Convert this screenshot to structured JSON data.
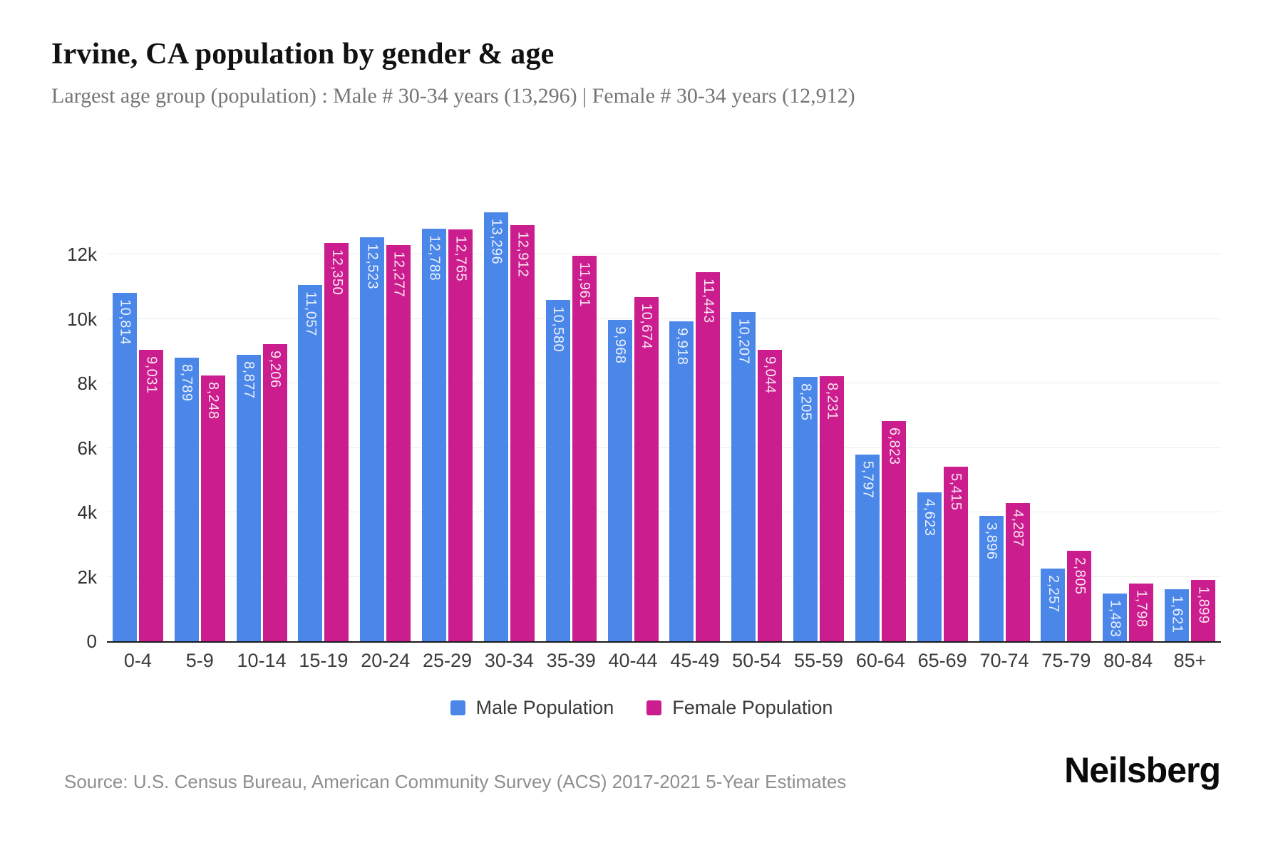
{
  "header": {
    "title": "Irvine, CA population by gender & age",
    "subtitle": "Largest age group (population) : Male # 30-34 years (13,296) | Female # 30-34 years (12,912)"
  },
  "footer": {
    "source": "Source: U.S. Census Bureau, American Community Survey (ACS) 2017-2021 5-Year Estimates",
    "brand": "Neilsberg"
  },
  "colors": {
    "male": "#4a87e8",
    "female": "#cb1d8d",
    "gridline": "#ececec",
    "axis_line": "#1a1a1a"
  },
  "chart_data": {
    "type": "bar",
    "title": "Irvine, CA population by gender & age",
    "categories": [
      "0-4",
      "5-9",
      "10-14",
      "15-19",
      "20-24",
      "25-29",
      "30-34",
      "35-39",
      "40-44",
      "45-49",
      "50-54",
      "55-59",
      "60-64",
      "65-69",
      "70-74",
      "75-79",
      "80-84",
      "85+"
    ],
    "series": [
      {
        "name": "Male Population",
        "color": "#4a87e8",
        "values": [
          10814,
          8789,
          8877,
          11057,
          12523,
          12788,
          13296,
          10580,
          9968,
          9918,
          10207,
          8205,
          5797,
          4623,
          3896,
          2257,
          1483,
          1621
        ]
      },
      {
        "name": "Female Population",
        "color": "#cb1d8d",
        "values": [
          9031,
          8248,
          9206,
          12350,
          12277,
          12765,
          12912,
          11961,
          10674,
          11443,
          9044,
          8231,
          6823,
          5415,
          4287,
          2805,
          1798,
          1899
        ]
      }
    ],
    "xlabel": "",
    "ylabel": "",
    "ylim": [
      0,
      13591
    ],
    "yticks": [
      {
        "value": 0,
        "label": "0"
      },
      {
        "value": 2000,
        "label": "2k"
      },
      {
        "value": 4000,
        "label": "4k"
      },
      {
        "value": 6000,
        "label": "6k"
      },
      {
        "value": 8000,
        "label": "8k"
      },
      {
        "value": 10000,
        "label": "10k"
      },
      {
        "value": 12000,
        "label": "12k"
      }
    ],
    "grid": "horizontal",
    "legend_position": "bottom",
    "value_labels": "rotated-vertical-inside-bar-top"
  }
}
